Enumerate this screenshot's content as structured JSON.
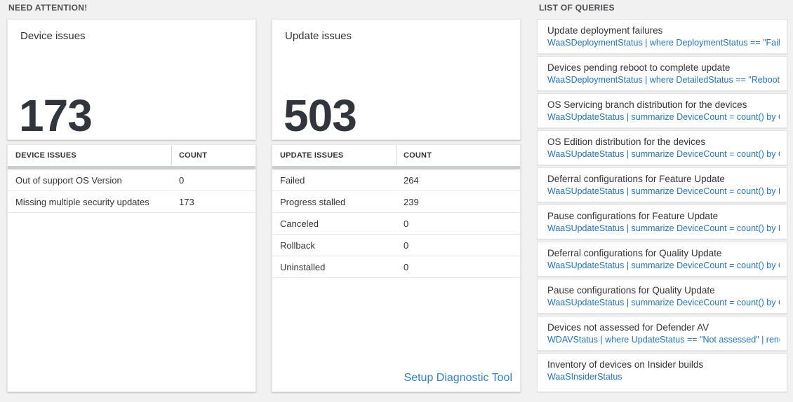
{
  "sections": {
    "need_attention_title": "NEED ATTENTION!",
    "queries_title": "LIST OF QUERIES"
  },
  "device_card": {
    "title": "Device issues",
    "big_number": "173",
    "table": {
      "columns": [
        "DEVICE ISSUES",
        "COUNT"
      ],
      "rows": [
        {
          "label": "Out of support OS Version",
          "count": "0"
        },
        {
          "label": "Missing multiple security updates",
          "count": "173"
        }
      ]
    }
  },
  "update_card": {
    "title": "Update issues",
    "big_number": "503",
    "table": {
      "columns": [
        "UPDATE ISSUES",
        "COUNT"
      ],
      "rows": [
        {
          "label": "Failed",
          "count": "264"
        },
        {
          "label": "Progress stalled",
          "count": "239"
        },
        {
          "label": "Canceled",
          "count": "0"
        },
        {
          "label": "Rollback",
          "count": "0"
        },
        {
          "label": "Uninstalled",
          "count": "0"
        }
      ]
    },
    "link_label": "Setup Diagnostic Tool"
  },
  "query_list": {
    "items": [
      {
        "title": "Update deployment failures",
        "query": "WaaSDeploymentStatus | where DeploymentStatus == \"Failed\" |..."
      },
      {
        "title": "Devices pending reboot to complete update",
        "query": "WaaSDeploymentStatus | where DetailedStatus == \"Reboot pend..."
      },
      {
        "title": "OS Servicing branch distribution for the devices",
        "query": "WaaSUpdateStatus | summarize DeviceCount = count() by OSSer..."
      },
      {
        "title": "OS Edition distribution for the devices",
        "query": "WaaSUpdateStatus | summarize DeviceCount = count() by OSEdit..."
      },
      {
        "title": "Deferral configurations for Feature Update",
        "query": "WaaSUpdateStatus | summarize DeviceCount = count() by Featur..."
      },
      {
        "title": "Pause configurations for Feature Update",
        "query": "WaaSUpdateStatus | summarize DeviceCount = count() by Featur..."
      },
      {
        "title": "Deferral configurations for Quality Update",
        "query": "WaaSUpdateStatus | summarize DeviceCount = count() by Qualit..."
      },
      {
        "title": "Pause configurations for Quality Update",
        "query": "WaaSUpdateStatus | summarize DeviceCount = count() by Qualit..."
      },
      {
        "title": "Devices not assessed for Defender AV",
        "query": "WDAVStatus | where UpdateStatus == \"Not assessed\" | render ta..."
      },
      {
        "title": "Inventory of devices on Insider builds",
        "query": "WaaSInsiderStatus"
      }
    ]
  },
  "colors": {
    "accent_blue": "#2574b9",
    "link_blue": "#2f83c8",
    "number_dark": "#31363c",
    "scrollbar_gray": "#c9cdd1",
    "page_background": "#f1f1f2"
  }
}
